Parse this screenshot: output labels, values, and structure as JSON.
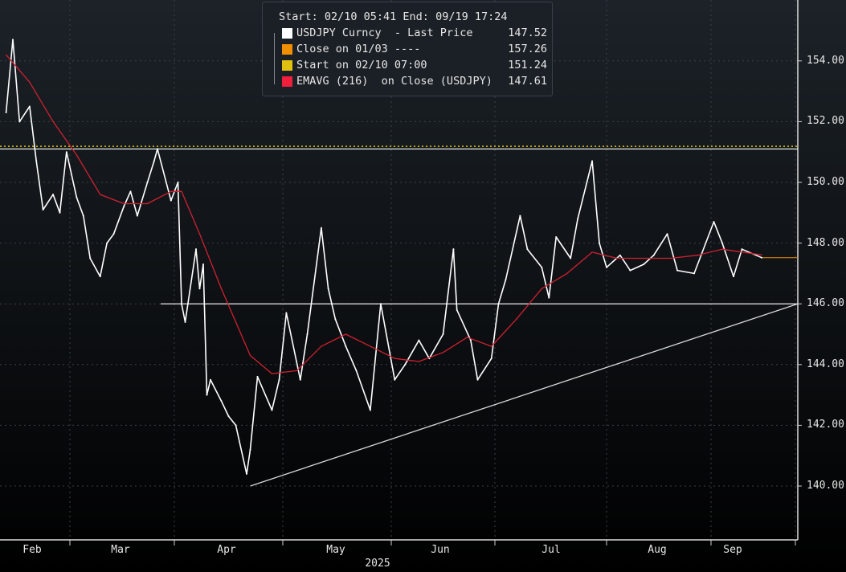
{
  "legend": {
    "header": "Start: 02/10 05:41 End: 09/19 17:24",
    "items": [
      {
        "label": "USDJPY Curncy  - Last Price",
        "value": "147.52",
        "color": "#ffffff"
      },
      {
        "label": "Close on 01/03 ----",
        "value": "157.26",
        "color": "#f09000"
      },
      {
        "label": "Start on 02/10 07:00",
        "value": "151.24",
        "color": "#e0c010"
      },
      {
        "label": "EMAVG (216)  on Close (USDJPY)",
        "value": "147.61",
        "color": "#f0203c"
      }
    ]
  },
  "chart_data": {
    "type": "line",
    "title": "",
    "xlabel": "2025",
    "ylabel": "",
    "ylim": [
      138.2,
      156.0
    ],
    "yticks": [
      "140.00",
      "142.00",
      "144.00",
      "146.00",
      "148.00",
      "150.00",
      "152.00",
      "154.00"
    ],
    "xticks": [
      "Feb",
      "Mar",
      "Apr",
      "May",
      "Jun",
      "Jul",
      "Aug",
      "Sep"
    ],
    "grid": true,
    "legend_position": "top-center",
    "series": [
      {
        "name": "USDJPY Curncy - Last Price",
        "color": "#ffffff",
        "x": [
          "02-10",
          "02-12",
          "02-14",
          "02-17",
          "02-19",
          "02-21",
          "02-24",
          "02-26",
          "02-28",
          "03-03",
          "03-05",
          "03-07",
          "03-10",
          "03-12",
          "03-14",
          "03-17",
          "03-19",
          "03-21",
          "03-24",
          "03-26",
          "03-27",
          "03-31",
          "04-02",
          "04-03",
          "04-04",
          "04-07",
          "04-08",
          "04-09",
          "04-10",
          "04-11",
          "04-14",
          "04-16",
          "04-18",
          "04-21",
          "04-22",
          "04-24",
          "04-28",
          "04-30",
          "05-02",
          "05-06",
          "05-08",
          "05-12",
          "05-14",
          "05-16",
          "05-19",
          "05-22",
          "05-26",
          "05-29",
          "06-02",
          "06-05",
          "06-09",
          "06-12",
          "06-16",
          "06-19",
          "06-20",
          "06-24",
          "06-26",
          "06-30",
          "07-02",
          "07-04",
          "07-08",
          "07-10",
          "07-14",
          "07-16",
          "07-18",
          "07-22",
          "07-24",
          "07-28",
          "07-30",
          "08-01",
          "08-05",
          "08-08",
          "08-12",
          "08-15",
          "08-19",
          "08-22",
          "08-27",
          "09-02",
          "09-05",
          "09-09",
          "09-12",
          "09-19"
        ],
        "values": [
          152.3,
          154.7,
          152.0,
          152.5,
          150.7,
          149.1,
          149.6,
          149.0,
          151.0,
          149.5,
          148.9,
          147.5,
          146.9,
          148.0,
          148.3,
          149.2,
          149.7,
          148.9,
          150.0,
          150.7,
          151.1,
          149.4,
          150.0,
          146.0,
          145.4,
          147.8,
          146.5,
          147.3,
          143.0,
          143.5,
          142.8,
          142.3,
          142.0,
          140.4,
          141.2,
          143.6,
          142.5,
          143.5,
          145.7,
          143.5,
          145.0,
          148.5,
          146.5,
          145.5,
          144.6,
          143.8,
          142.5,
          146.0,
          143.5,
          144.0,
          144.8,
          144.2,
          145.0,
          147.8,
          145.8,
          144.8,
          143.5,
          144.2,
          146.0,
          146.8,
          148.9,
          147.8,
          147.2,
          146.2,
          148.2,
          147.5,
          148.8,
          150.7,
          148.0,
          147.2,
          147.6,
          147.1,
          147.3,
          147.6,
          148.3,
          147.1,
          147.0,
          148.7,
          148.0,
          146.9,
          147.8,
          147.52
        ]
      },
      {
        "name": "EMAVG (216) on Close (USDJPY)",
        "color": "#d02030",
        "x": [
          "02-10",
          "02-17",
          "02-24",
          "03-03",
          "03-10",
          "03-17",
          "03-24",
          "03-31",
          "04-03",
          "04-08",
          "04-14",
          "04-22",
          "04-28",
          "05-05",
          "05-12",
          "05-19",
          "05-26",
          "06-02",
          "06-09",
          "06-16",
          "06-23",
          "06-30",
          "07-07",
          "07-14",
          "07-21",
          "07-28",
          "08-04",
          "08-12",
          "08-20",
          "08-28",
          "09-05",
          "09-19"
        ],
        "values": [
          154.2,
          153.3,
          152.0,
          150.9,
          149.6,
          149.3,
          149.3,
          149.7,
          149.7,
          148.3,
          146.5,
          144.3,
          143.7,
          143.8,
          144.6,
          145.0,
          144.6,
          144.2,
          144.1,
          144.4,
          144.9,
          144.6,
          145.5,
          146.5,
          147.0,
          147.7,
          147.5,
          147.5,
          147.5,
          147.6,
          147.8,
          147.61
        ]
      }
    ],
    "reference_lines": [
      {
        "label": "Start on 02/10 07:00",
        "value": 151.24,
        "style": "dotted",
        "color": "#e0c010"
      },
      {
        "value": 151.1,
        "style": "solid",
        "color": "#ffffff"
      },
      {
        "value": 146.0,
        "style": "solid",
        "color": "#ffffff",
        "from": "04-01"
      },
      {
        "label": "Last Price",
        "value": 147.52,
        "color": "#f09000",
        "from": "09-19"
      }
    ],
    "trendline": {
      "from": {
        "x": "04-22",
        "y": 140.0
      },
      "to": {
        "x": "10-01",
        "y": 146.0
      },
      "color": "#d8d8d8"
    }
  }
}
